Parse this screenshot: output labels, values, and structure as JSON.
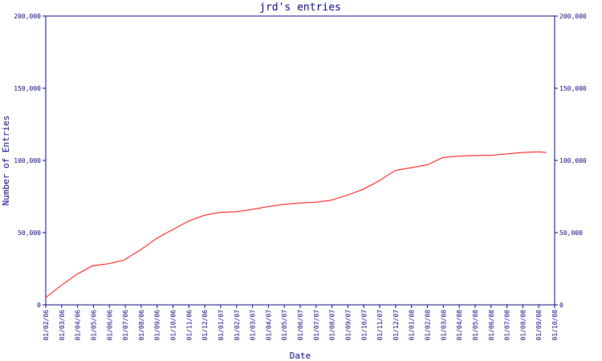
{
  "chart_data": {
    "type": "line",
    "title": "jrd's entries",
    "xlabel": "Date",
    "ylabel": "Number of Entries",
    "ylim": [
      0,
      200000
    ],
    "y_ticks": [
      0,
      50000,
      100000,
      150000,
      200000
    ],
    "y_tick_labels": [
      "0",
      "50,000",
      "100,000",
      "150,000",
      "200,000"
    ],
    "x_ticks": [
      "01/02/06",
      "01/03/06",
      "01/04/06",
      "01/05/06",
      "01/06/06",
      "01/07/06",
      "01/08/06",
      "01/09/06",
      "01/10/06",
      "01/11/06",
      "01/12/06",
      "01/01/07",
      "01/02/07",
      "01/03/07",
      "01/04/07",
      "01/05/07",
      "01/06/07",
      "01/07/07",
      "01/08/07",
      "01/09/07",
      "01/10/07",
      "01/11/07",
      "01/12/07",
      "01/01/08",
      "01/02/08",
      "01/03/08",
      "01/04/08",
      "01/05/08",
      "01/06/08",
      "01/07/08",
      "01/08/08",
      "01/09/08",
      "01/10/08"
    ],
    "grid": false,
    "line_color": "#ff0000",
    "axis_color": "#000080",
    "series": [
      {
        "x": [
          "2006-02-01",
          "2006-03-01",
          "2006-04-01",
          "2006-05-01",
          "2006-06-01",
          "2006-07-01",
          "2006-08-01",
          "2006-09-01",
          "2006-10-01",
          "2006-11-01",
          "2006-12-01",
          "2007-01-01",
          "2007-02-01",
          "2007-03-01",
          "2007-04-01",
          "2007-05-01",
          "2007-06-01",
          "2007-07-01",
          "2007-08-01",
          "2007-09-01",
          "2007-10-01",
          "2007-11-01",
          "2007-12-01",
          "2008-01-01",
          "2008-02-01",
          "2008-03-01",
          "2008-04-01",
          "2008-05-01",
          "2008-06-01",
          "2008-07-01",
          "2008-08-01",
          "2008-09-01",
          "2008-09-15"
        ],
        "y": [
          5000,
          13000,
          21000,
          27000,
          28500,
          31000,
          38000,
          46000,
          52000,
          58000,
          62000,
          64000,
          64500,
          66000,
          68000,
          69500,
          70500,
          71000,
          72500,
          76000,
          80000,
          86000,
          93000,
          95000,
          97000,
          102000,
          103000,
          103500,
          103500,
          104500,
          105500,
          106000,
          105500
        ]
      }
    ]
  }
}
